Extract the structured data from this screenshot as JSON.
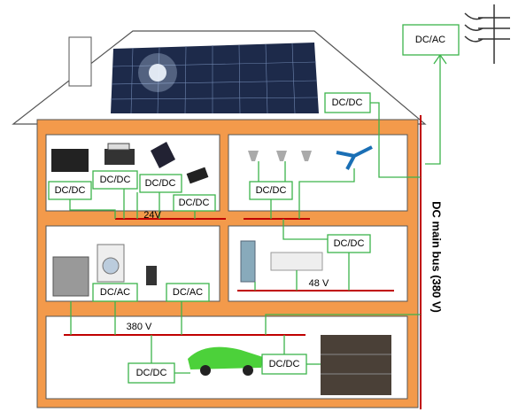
{
  "grid_connection": {
    "label": "DC/AC"
  },
  "solar": {
    "converter": "DC/DC"
  },
  "room_24v": {
    "converters": [
      "DC/DC",
      "DC/DC",
      "DC/DC",
      "DC/DC"
    ],
    "bus_label": "24V"
  },
  "room_lighting": {
    "converter": "DC/DC"
  },
  "room_ac": {
    "converters": [
      "DC/AC",
      "DC/AC"
    ]
  },
  "room_48v": {
    "converter": "DC/DC",
    "bus_label": "48 V"
  },
  "room_380v": {
    "bus_label": "380 V",
    "converters": [
      "DC/DC",
      "DC/DC"
    ]
  },
  "main_bus": {
    "label": "DC main bus (380 V)"
  }
}
